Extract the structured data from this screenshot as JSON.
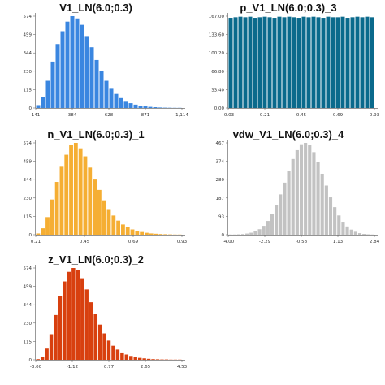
{
  "chart_data": [
    {
      "type": "bar",
      "title": "V1_LN(6.0;0.3)",
      "color": "#3a86e0",
      "ylim": [
        0,
        574
      ],
      "yticks": [
        "574",
        "459",
        "344",
        "230",
        "115",
        "0"
      ],
      "xlim": [
        141,
        1114
      ],
      "xticks": [
        "141",
        "384",
        "628",
        "871",
        "1,114"
      ],
      "values": [
        18,
        70,
        170,
        290,
        400,
        480,
        540,
        574,
        560,
        520,
        450,
        380,
        300,
        230,
        170,
        125,
        88,
        62,
        44,
        30,
        21,
        14,
        10,
        7,
        5,
        3,
        2,
        1.5,
        1,
        1
      ]
    },
    {
      "type": "bar",
      "title": "p_V1_LN(6.0;0.3)_3",
      "color": "#0a6a8c",
      "ylim": [
        0,
        167
      ],
      "yticks": [
        "167.00",
        "133.60",
        "100.20",
        "66.80",
        "33.40",
        "0.00"
      ],
      "xlim": [
        -0.03,
        0.93
      ],
      "xticks": [
        "-0.03",
        "0.21",
        "0.45",
        "0.69",
        "0.93"
      ],
      "values": [
        164,
        165,
        166,
        165,
        166,
        164,
        165,
        166,
        165,
        164,
        166,
        165,
        166,
        165,
        164,
        166,
        165,
        166,
        165,
        164,
        166,
        165,
        165,
        166,
        164,
        165,
        166,
        165,
        166,
        165
      ]
    },
    {
      "type": "bar",
      "title": "n_V1_LN(6.0;0.3)_1",
      "color": "#f5ae33",
      "ylim": [
        0,
        574
      ],
      "yticks": [
        "574",
        "459",
        "344",
        "230",
        "115",
        "0"
      ],
      "xlim": [
        -0.03,
        0.93
      ],
      "xticks": [
        "0.21",
        "0.45",
        "0.69",
        "0.93"
      ],
      "values": [
        8,
        40,
        110,
        220,
        330,
        430,
        500,
        560,
        574,
        540,
        490,
        420,
        350,
        280,
        215,
        160,
        120,
        88,
        64,
        46,
        33,
        24,
        17,
        12,
        8,
        6,
        4,
        3,
        2,
        1,
        1
      ]
    },
    {
      "type": "bar",
      "title": "vdw_V1_LN(6.0;0.3)_4",
      "color": "#c2c2c2",
      "ylim": [
        0,
        467
      ],
      "yticks": [
        "467",
        "374",
        "280",
        "187",
        "93",
        "0"
      ],
      "xlim": [
        -4.0,
        4.55
      ],
      "xticks": [
        "-4.00",
        "-2.29",
        "-0.58",
        "1.13",
        "2.84"
      ],
      "values": [
        1,
        1,
        2,
        3,
        6,
        10,
        17,
        28,
        45,
        70,
        105,
        150,
        205,
        265,
        325,
        385,
        430,
        460,
        467,
        455,
        420,
        370,
        310,
        250,
        190,
        140,
        98,
        66,
        42,
        26,
        15,
        8,
        4,
        2,
        1
      ]
    },
    {
      "type": "bar",
      "title": "z_V1_LN(6.0;0.3)_2",
      "color": "#d8400f",
      "ylim": [
        0,
        574
      ],
      "yticks": [
        "574",
        "459",
        "344",
        "230",
        "115",
        "0"
      ],
      "xlim": [
        -3.0,
        6.41
      ],
      "xticks": [
        "-3.00",
        "-1.12",
        "0.77",
        "2.65",
        "4.53"
      ],
      "values": [
        4,
        20,
        70,
        160,
        280,
        400,
        490,
        550,
        574,
        560,
        510,
        440,
        360,
        285,
        220,
        165,
        120,
        88,
        64,
        46,
        33,
        24,
        17,
        12,
        9,
        6,
        4,
        3,
        2,
        2,
        1,
        1,
        1
      ]
    }
  ]
}
